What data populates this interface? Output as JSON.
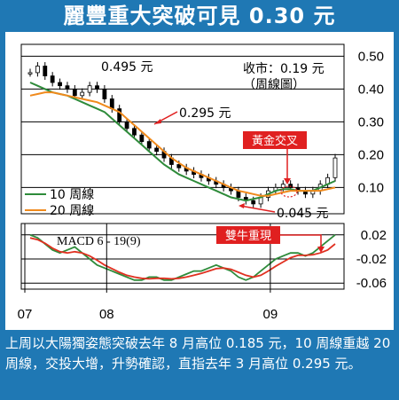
{
  "title": "麗豐重大突破可見 0.30 元",
  "description": "上周以大陽獨姿態突破去年 8 月高位 0.185 元，10 周線重越 20 周線，交投大增，升勢確認，直指去年 3 月高位 0.295 元。",
  "colors": {
    "background": "#1f78b4",
    "ma10": "#2e8b3a",
    "ma20": "#f08a1c",
    "tag_fill": "#e02020",
    "arrow": "#e02020"
  },
  "chart_data": [
    {
      "type": "candlestick",
      "name": "price",
      "y_axis_side": "right",
      "y_ticks": [
        "0.50",
        "0.40",
        "0.30",
        "0.20",
        "0.10"
      ],
      "y_tick_values": [
        0.5,
        0.4,
        0.3,
        0.2,
        0.1
      ],
      "ylim": [
        0.02,
        0.52
      ],
      "x_ticks": [
        "07",
        "08",
        "09"
      ],
      "annotations": {
        "close_label": "收市：0.19 元",
        "close_sub": "（周線圖）",
        "high_label": "0.495 元",
        "resist_label": "0.295 元",
        "low_label": "0.045 元",
        "cross_label": "黃金交叉"
      },
      "legend": [
        "10 周線",
        "20 周線"
      ],
      "series": [
        {
          "name": "10 周線",
          "values": [
            0.42,
            0.41,
            0.4,
            0.39,
            0.385,
            0.38,
            0.37,
            0.36,
            0.35,
            0.34,
            0.33,
            0.31,
            0.29,
            0.27,
            0.25,
            0.23,
            0.21,
            0.19,
            0.17,
            0.155,
            0.14,
            0.13,
            0.12,
            0.11,
            0.1,
            0.09,
            0.08,
            0.07,
            0.065,
            0.06,
            0.065,
            0.07,
            0.08,
            0.09,
            0.095,
            0.095,
            0.09,
            0.09,
            0.09,
            0.1,
            0.11,
            0.12
          ]
        },
        {
          "name": "20 周線",
          "values": [
            0.38,
            0.385,
            0.39,
            0.39,
            0.385,
            0.38,
            0.375,
            0.37,
            0.365,
            0.36,
            0.35,
            0.34,
            0.33,
            0.31,
            0.29,
            0.27,
            0.25,
            0.23,
            0.21,
            0.19,
            0.175,
            0.16,
            0.15,
            0.14,
            0.13,
            0.12,
            0.11,
            0.1,
            0.09,
            0.085,
            0.08,
            0.075,
            0.075,
            0.08,
            0.085,
            0.09,
            0.09,
            0.09,
            0.09,
            0.09,
            0.095,
            0.1
          ]
        }
      ],
      "candles": [
        0.45,
        0.47,
        0.44,
        0.42,
        0.41,
        0.4,
        0.38,
        0.39,
        0.41,
        0.4,
        0.37,
        0.34,
        0.3,
        0.28,
        0.26,
        0.24,
        0.22,
        0.21,
        0.19,
        0.17,
        0.16,
        0.15,
        0.14,
        0.13,
        0.12,
        0.11,
        0.1,
        0.09,
        0.07,
        0.06,
        0.05,
        0.07,
        0.09,
        0.1,
        0.11,
        0.1,
        0.09,
        0.08,
        0.09,
        0.11,
        0.13,
        0.19
      ]
    },
    {
      "type": "line",
      "name": "macd",
      "title": "MACD 6 - 19(9)",
      "y_ticks": [
        "0.02",
        "-0.02",
        "-0.06"
      ],
      "y_tick_values": [
        0.02,
        -0.02,
        -0.06
      ],
      "ylim": [
        -0.07,
        0.03
      ],
      "annotation": "雙牛重現",
      "series": [
        {
          "name": "MACD",
          "values": [
            0.02,
            0.015,
            0.005,
            -0.005,
            -0.01,
            -0.005,
            0.0,
            -0.01,
            -0.02,
            -0.03,
            -0.035,
            -0.04,
            -0.045,
            -0.05,
            -0.055,
            -0.055,
            -0.05,
            -0.05,
            -0.055,
            -0.055,
            -0.05,
            -0.045,
            -0.04,
            -0.04,
            -0.035,
            -0.03,
            -0.035,
            -0.04,
            -0.05,
            -0.055,
            -0.05,
            -0.04,
            -0.03,
            -0.02,
            -0.015,
            -0.01,
            -0.01,
            -0.015,
            -0.01,
            0.0,
            0.01,
            0.02
          ]
        },
        {
          "name": "Signal",
          "values": [
            0.015,
            0.012,
            0.006,
            -0.002,
            -0.008,
            -0.01,
            -0.008,
            -0.01,
            -0.015,
            -0.022,
            -0.03,
            -0.036,
            -0.042,
            -0.047,
            -0.05,
            -0.052,
            -0.053,
            -0.052,
            -0.052,
            -0.053,
            -0.052,
            -0.05,
            -0.047,
            -0.044,
            -0.04,
            -0.036,
            -0.035,
            -0.037,
            -0.042,
            -0.047,
            -0.05,
            -0.047,
            -0.04,
            -0.032,
            -0.025,
            -0.018,
            -0.014,
            -0.014,
            -0.013,
            -0.01,
            -0.005,
            0.005
          ]
        }
      ]
    }
  ]
}
